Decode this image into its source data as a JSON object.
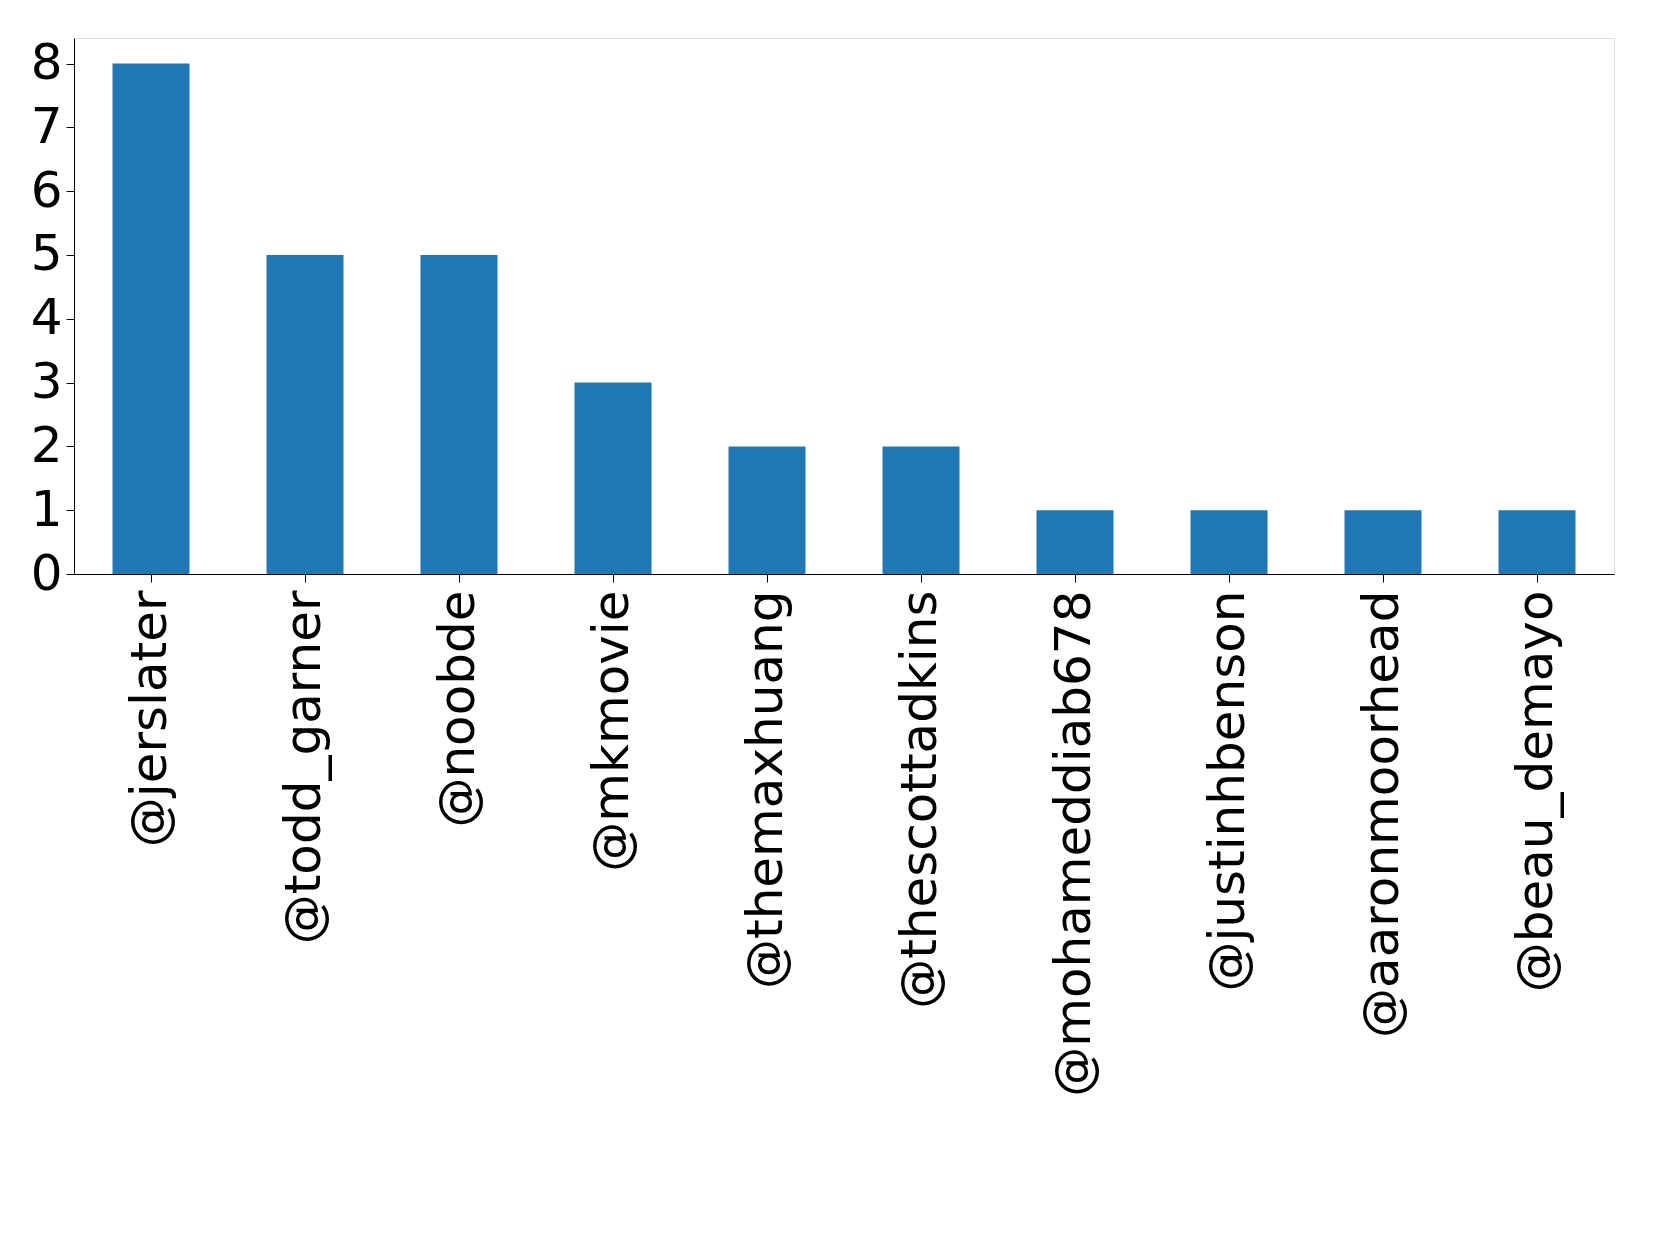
{
  "chart_data": {
    "type": "bar",
    "categories": [
      "@jerslater",
      "@todd_garner",
      "@noobde",
      "@mkmovie",
      "@themaxhuang",
      "@thescottadkins",
      "@mohameddiab678",
      "@justinhbenson",
      "@aaronmoorhead",
      "@beau_demayo"
    ],
    "values": [
      8,
      5,
      5,
      3,
      2,
      2,
      1,
      1,
      1,
      1
    ],
    "color": "#1f77b4",
    "ylim": [
      0,
      8.4
    ],
    "yticks": [
      0,
      1,
      2,
      3,
      4,
      5,
      6,
      7,
      8
    ],
    "grid": false
  }
}
